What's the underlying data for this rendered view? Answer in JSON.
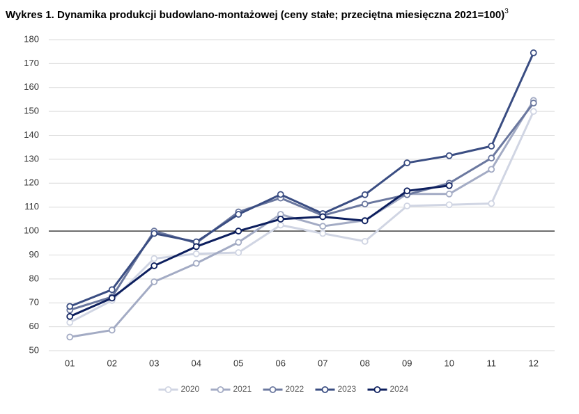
{
  "chart_data": {
    "type": "line",
    "title": "Wykres 1.   Dynamika produkcji budowlano-montażowej (ceny stałe; przeciętna miesięczna 2021=100)",
    "title_superscript": "3",
    "categories": [
      "01",
      "02",
      "03",
      "04",
      "05",
      "06",
      "07",
      "08",
      "09",
      "10",
      "11",
      "12"
    ],
    "series": [
      {
        "name": "2020",
        "color": "#d0d5e3",
        "values": [
          61.8,
          71,
          88.5,
          90.5,
          91,
          102.5,
          99,
          95.7,
          110.5,
          111,
          111.5,
          150
        ]
      },
      {
        "name": "2021",
        "color": "#a3abc4",
        "values": [
          55.7,
          58.6,
          78.8,
          86.5,
          95.3,
          107,
          102,
          104.5,
          115.5,
          115.5,
          125.8,
          154.6
        ]
      },
      {
        "name": "2022",
        "color": "#6b789f",
        "values": [
          67,
          72.5,
          100,
          95,
          108,
          113.8,
          106.5,
          111.3,
          115.2,
          120,
          130.5,
          153.5
        ]
      },
      {
        "name": "2023",
        "color": "#3a4d82",
        "values": [
          68.5,
          75.5,
          99,
          95.5,
          107,
          115.3,
          107.3,
          115.2,
          128.5,
          131.5,
          135.5,
          174.5
        ]
      },
      {
        "name": "2024",
        "color": "#0d1f5e",
        "values": [
          64.3,
          72,
          85.5,
          93.5,
          100,
          105,
          106,
          104.3,
          116.8,
          119,
          null,
          null
        ]
      }
    ],
    "ylim": [
      50,
      180
    ],
    "yticks": [
      50,
      60,
      70,
      80,
      90,
      100,
      110,
      120,
      130,
      140,
      150,
      160,
      170,
      180
    ],
    "grid": true,
    "reference_line": 100,
    "legend": "bottom"
  }
}
